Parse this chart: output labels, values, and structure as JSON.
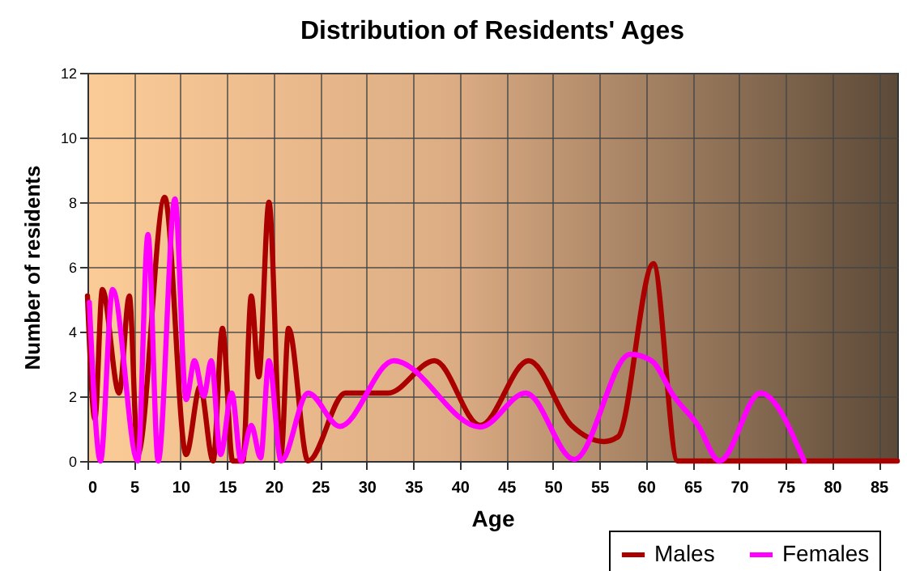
{
  "chart_data": {
    "type": "line",
    "title": "Distribution of Residents' Ages",
    "xlabel": "Age",
    "ylabel": "Number of residents",
    "xlim": [
      0,
      87
    ],
    "xticks": [
      0,
      5,
      10,
      15,
      20,
      25,
      30,
      35,
      40,
      45,
      50,
      55,
      60,
      65,
      70,
      75,
      80,
      85
    ],
    "ylim": [
      0,
      12
    ],
    "yticks": [
      0,
      2,
      4,
      6,
      8,
      10,
      12
    ],
    "grid": true,
    "legend": "bottom right",
    "marker": "none",
    "series": [
      {
        "name": "Males",
        "color": "#aa0000",
        "x": [
          0,
          0.8,
          1.6,
          3.4,
          4.5,
          5.4,
          8.3,
          10.6,
          12.1,
          13.5,
          14.5,
          15.6,
          16.7,
          17.6,
          18.4,
          19.5,
          20.8,
          21.6,
          23.7,
          27.7,
          32.3,
          37.3,
          42.2,
          47.4,
          52,
          55.5,
          57,
          60.8,
          63.4,
          87
        ],
        "values": [
          5.1,
          1.3,
          5.3,
          2.1,
          5.1,
          0.2,
          8.15,
          0.2,
          2.3,
          0,
          4.1,
          0,
          0,
          5.1,
          2.6,
          8,
          0.2,
          4.1,
          0,
          2.1,
          2.1,
          3.1,
          1.1,
          3.1,
          1.1,
          0.6,
          0.75,
          6.1,
          0,
          0
        ]
      },
      {
        "name": "Females",
        "color": "#ff00ff",
        "x": [
          0.2,
          1.4,
          2.7,
          5.4,
          6.5,
          7.6,
          9.4,
          10.6,
          11.5,
          12.5,
          13.3,
          14.3,
          15.5,
          16.5,
          17.6,
          18.6,
          19.5,
          20.8,
          23.7,
          27.1,
          32.9,
          42.2,
          47.1,
          52.3,
          58.3,
          60.6,
          63,
          65.6,
          67.9,
          72.3,
          77
        ],
        "values": [
          4.9,
          0,
          5.3,
          0,
          7,
          0,
          8.1,
          1.9,
          3.1,
          2,
          3.1,
          0.2,
          2.1,
          0,
          1.1,
          0.1,
          3.1,
          0,
          2.1,
          1.07,
          3.1,
          1.05,
          2.1,
          0.05,
          3.3,
          3.1,
          2,
          1.1,
          0,
          2.1,
          0
        ]
      }
    ]
  }
}
